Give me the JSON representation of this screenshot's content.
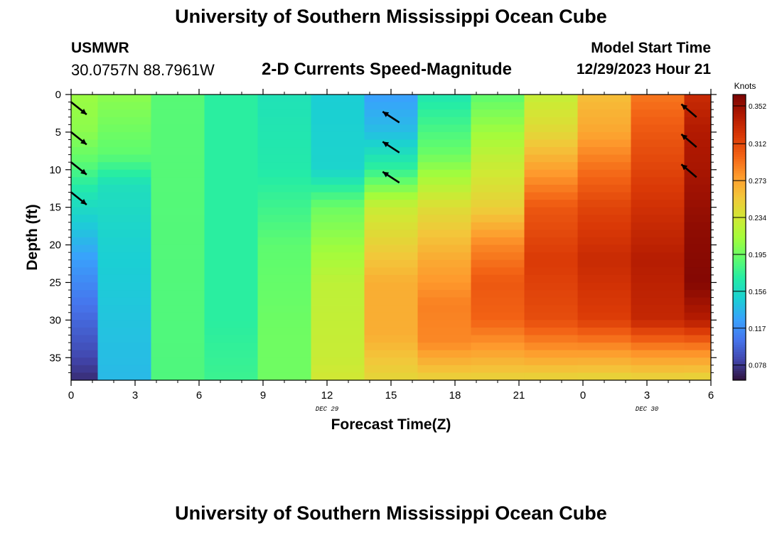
{
  "header": {
    "title": "University of Southern Mississippi Ocean Cube",
    "station": "USMWR",
    "coords": "30.0757N  88.7961W",
    "chart_title": "2-D Currents Speed-Magnitude",
    "start_label": "Model Start Time",
    "start_value": "12/29/2023 Hour 21"
  },
  "footer": {
    "title": "University of Southern Mississippi Ocean Cube"
  },
  "chart_data": {
    "type": "heatmap",
    "title": "2-D Currents Speed-Magnitude",
    "xlabel": "Forecast Time(Z)",
    "ylabel": "Depth (ft)",
    "x_ticks": [
      "0",
      "3",
      "6",
      "9",
      "12",
      "15",
      "18",
      "21",
      "0",
      "3",
      "6"
    ],
    "x_tick_hours": [
      0,
      3,
      6,
      9,
      12,
      15,
      18,
      21,
      24,
      27,
      30
    ],
    "date_labels": [
      {
        "hour": 12,
        "text": "DEC 29"
      },
      {
        "hour": 27,
        "text": "DEC 30"
      }
    ],
    "y_ticks": [
      0,
      5,
      10,
      15,
      20,
      25,
      30,
      35
    ],
    "xlim": [
      0,
      30
    ],
    "ylim": [
      38,
      0
    ],
    "colorbar": {
      "label": "Knots",
      "ticks": [
        "0.352",
        "0.312",
        "0.273",
        "0.234",
        "0.195",
        "0.156",
        "0.117",
        "0.078"
      ],
      "tick_values": [
        0.352,
        0.312,
        0.273,
        0.234,
        0.195,
        0.156,
        0.117,
        0.078
      ],
      "range": [
        0.062,
        0.364
      ],
      "colors": [
        "#30123b",
        "#4145ab",
        "#4675ed",
        "#39a2fc",
        "#1bcfd4",
        "#24eca6",
        "#61fc6c",
        "#a4fc3b",
        "#d1e834",
        "#f3c63a",
        "#fe9b2d",
        "#f36315",
        "#d93806",
        "#b11901",
        "#7a0403"
      ]
    },
    "columns": [
      {
        "hour": 0,
        "profile": [
          [
            0,
            0.21
          ],
          [
            5,
            0.205
          ],
          [
            9,
            0.19
          ],
          [
            13,
            0.165
          ],
          [
            17,
            0.148
          ],
          [
            22,
            0.125
          ],
          [
            28,
            0.105
          ],
          [
            34,
            0.088
          ],
          [
            37.5,
            0.075
          ],
          [
            38,
            0.068
          ]
        ]
      },
      {
        "hour": 2.5,
        "profile": [
          [
            0,
            0.205
          ],
          [
            8,
            0.19
          ],
          [
            12,
            0.16
          ],
          [
            20,
            0.15
          ],
          [
            30,
            0.143
          ],
          [
            38,
            0.138
          ]
        ]
      },
      {
        "hour": 5,
        "profile": [
          [
            0,
            0.188
          ],
          [
            38,
            0.185
          ]
        ]
      },
      {
        "hour": 7.5,
        "profile": [
          [
            0,
            0.172
          ],
          [
            30,
            0.172
          ],
          [
            38,
            0.178
          ]
        ]
      },
      {
        "hour": 10,
        "profile": [
          [
            0,
            0.162
          ],
          [
            10,
            0.168
          ],
          [
            20,
            0.19
          ],
          [
            32,
            0.196
          ],
          [
            38,
            0.196
          ]
        ]
      },
      {
        "hour": 12.5,
        "profile": [
          [
            0,
            0.148
          ],
          [
            10,
            0.152
          ],
          [
            15,
            0.195
          ],
          [
            25,
            0.225
          ],
          [
            35,
            0.23
          ],
          [
            38,
            0.235
          ]
        ]
      },
      {
        "hour": 15,
        "profile": [
          [
            0,
            0.125
          ],
          [
            5,
            0.14
          ],
          [
            10,
            0.175
          ],
          [
            15,
            0.23
          ],
          [
            25,
            0.268
          ],
          [
            32,
            0.268
          ],
          [
            38,
            0.246
          ]
        ]
      },
      {
        "hour": 17.5,
        "profile": [
          [
            0,
            0.165
          ],
          [
            8,
            0.195
          ],
          [
            15,
            0.242
          ],
          [
            22,
            0.27
          ],
          [
            28,
            0.288
          ],
          [
            33,
            0.285
          ],
          [
            38,
            0.248
          ]
        ]
      },
      {
        "hour": 20,
        "profile": [
          [
            0,
            0.19
          ],
          [
            8,
            0.225
          ],
          [
            15,
            0.25
          ],
          [
            20,
            0.285
          ],
          [
            25,
            0.305
          ],
          [
            30,
            0.3
          ],
          [
            34,
            0.275
          ],
          [
            38,
            0.248
          ]
        ]
      },
      {
        "hour": 22.5,
        "profile": [
          [
            0,
            0.228
          ],
          [
            5,
            0.245
          ],
          [
            10,
            0.275
          ],
          [
            15,
            0.305
          ],
          [
            22,
            0.32
          ],
          [
            30,
            0.31
          ],
          [
            34,
            0.28
          ],
          [
            38,
            0.246
          ]
        ]
      },
      {
        "hour": 25,
        "profile": [
          [
            0,
            0.26
          ],
          [
            5,
            0.272
          ],
          [
            10,
            0.295
          ],
          [
            15,
            0.315
          ],
          [
            22,
            0.33
          ],
          [
            30,
            0.318
          ],
          [
            34,
            0.28
          ],
          [
            38,
            0.245
          ]
        ]
      },
      {
        "hour": 27.5,
        "profile": [
          [
            0,
            0.292
          ],
          [
            5,
            0.305
          ],
          [
            10,
            0.315
          ],
          [
            16,
            0.328
          ],
          [
            22,
            0.34
          ],
          [
            30,
            0.332
          ],
          [
            34,
            0.285
          ],
          [
            38,
            0.246
          ]
        ]
      },
      {
        "hour": 30,
        "profile": [
          [
            0,
            0.33
          ],
          [
            5,
            0.342
          ],
          [
            10,
            0.346
          ],
          [
            18,
            0.356
          ],
          [
            25,
            0.36
          ],
          [
            30,
            0.34
          ],
          [
            34,
            0.285
          ],
          [
            38,
            0.245
          ]
        ]
      }
    ],
    "vectors": [
      {
        "hour": 0,
        "depth": 1,
        "dx": 1,
        "dy": 0.8
      },
      {
        "hour": 0,
        "depth": 5,
        "dx": 1,
        "dy": 0.8
      },
      {
        "hour": 0,
        "depth": 9,
        "dx": 1,
        "dy": 0.8
      },
      {
        "hour": 0,
        "depth": 13,
        "dx": 1,
        "dy": 0.8
      },
      {
        "hour": 15,
        "depth": 3,
        "dx": -1,
        "dy": -0.65
      },
      {
        "hour": 15,
        "depth": 7,
        "dx": -1,
        "dy": -0.65
      },
      {
        "hour": 15,
        "depth": 11,
        "dx": -1,
        "dy": -0.65
      },
      {
        "hour": 30,
        "depth": 3,
        "dx": -1,
        "dy": -0.85
      },
      {
        "hour": 30,
        "depth": 7,
        "dx": -1,
        "dy": -0.85
      },
      {
        "hour": 30,
        "depth": 11,
        "dx": -1,
        "dy": -0.85
      }
    ]
  }
}
